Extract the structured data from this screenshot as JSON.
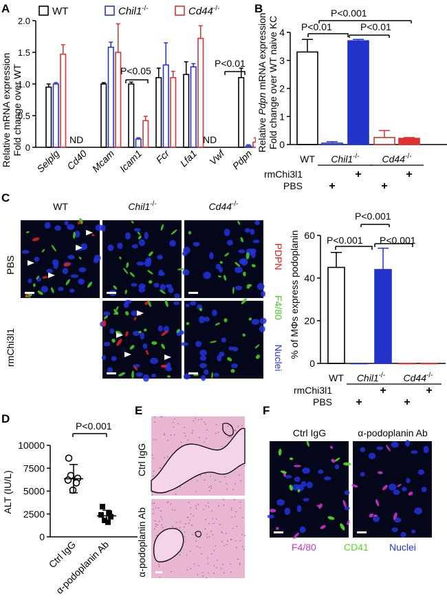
{
  "panels": {
    "A": "A",
    "B": "B",
    "C": "C",
    "D": "D",
    "E": "E",
    "F": "F"
  },
  "colors": {
    "wt": "#000000",
    "chil1": "#2233cc",
    "cd44": "#e03030",
    "pdpn": "#e02020",
    "f480_green": "#44cc22",
    "nuclei": "#2233dd",
    "f480_magenta": "#cc33cc",
    "cd41": "#55dd22"
  },
  "geno": {
    "wt": "WT",
    "chil1": "Chil1",
    "cd44": "Cd44",
    "sup": "-/-"
  },
  "chart_data": [
    {
      "panel": "A",
      "type": "bar",
      "ylabel_lines": [
        "Relative mRNA expression",
        "Fold change over WT"
      ],
      "ylim": [
        0,
        2
      ],
      "yticks": [
        "0",
        "0.5",
        "1.0",
        "1.5",
        "2.0"
      ],
      "categories": [
        "Selplg",
        "Cd40",
        "Mcam",
        "Icam1",
        "Fcr",
        "Lfa1",
        "Vwf",
        "Pdpn"
      ],
      "series": [
        {
          "name": "WT",
          "color": "#000000",
          "fill": "none",
          "values": [
            0.95,
            null,
            1.0,
            1.0,
            1.1,
            1.15,
            null,
            1.1
          ],
          "errors": [
            0.05,
            null,
            0.02,
            0.03,
            0.15,
            0.2,
            null,
            0.15
          ]
        },
        {
          "name": "Chil1-/-",
          "color": "#2233cc",
          "fill": "none",
          "values": [
            1.0,
            null,
            1.58,
            0.13,
            1.3,
            1.27,
            null,
            0.02
          ],
          "errors": [
            0.02,
            null,
            0.08,
            0.02,
            0.35,
            0.05,
            null,
            0.02
          ]
        },
        {
          "name": "Cd44-/-",
          "color": "#e03030",
          "fill": "none",
          "values": [
            1.47,
            null,
            1.5,
            0.42,
            1.1,
            1.72,
            null,
            0.08
          ],
          "errors": [
            0.15,
            null,
            0.45,
            0.07,
            0.1,
            0.2,
            null,
            0.07
          ]
        }
      ],
      "nd_labels": [
        "ND",
        "ND"
      ],
      "annotations": [
        "P<0.05",
        "P<0.01"
      ]
    },
    {
      "panel": "B",
      "type": "bar",
      "ylabel_lines": [
        "Relative Pdpn mRNA expression",
        "Fold change over WT naive KC"
      ],
      "ylim": [
        0,
        4
      ],
      "yticks": [
        "0",
        "1",
        "2",
        "3",
        "4"
      ],
      "categories": [
        "WT",
        "Chil1-/-",
        "Chil1-/-",
        "Cd44-/-",
        "Cd44-/-"
      ],
      "rmChi3l1": [
        "",
        "",
        "+",
        "",
        "+"
      ],
      "PBS": [
        "",
        "+",
        "",
        "+",
        ""
      ],
      "row_labels": [
        "rmChi3l1",
        "PBS"
      ],
      "values": [
        3.3,
        0.05,
        3.7,
        0.25,
        0.22
      ],
      "errors": [
        0.45,
        0.05,
        0.05,
        0.25,
        0.03
      ],
      "annotations": [
        "P<0.01",
        "P<0.001",
        "P<0.01"
      ]
    },
    {
      "panel": "C",
      "type": "bar",
      "ylabel": "% of MΦs express podoplanin",
      "ylim": [
        0,
        60
      ],
      "yticks": [
        "0",
        "20",
        "40",
        "60"
      ],
      "categories": [
        "WT",
        "Chil1-/-",
        "Chil1-/-",
        "Cd44-/-",
        "Cd44-/-"
      ],
      "rmChi3l1": [
        "",
        "",
        "+",
        "",
        "+"
      ],
      "PBS": [
        "",
        "+",
        "",
        "+",
        ""
      ],
      "row_labels": [
        "rmChi3l1",
        "PBS"
      ],
      "values": [
        45,
        0,
        44,
        0,
        0
      ],
      "errors": [
        7,
        0,
        10,
        0,
        0
      ],
      "annotations": [
        "P<0.001",
        "P<0.001",
        "P<0.001"
      ]
    },
    {
      "panel": "D",
      "type": "scatter",
      "ylabel": "ALT (IU/L)",
      "ylim": [
        0,
        10000
      ],
      "yticks": [
        "0",
        "2500",
        "5000",
        "7500",
        "10000"
      ],
      "categories": [
        "Ctrl IgG",
        "α-podoplanin Ab"
      ],
      "points": [
        [
          8600,
          6700,
          6400,
          6200,
          5900,
          5100
        ],
        [
          3300,
          2600,
          2400,
          2200,
          1800,
          1600
        ]
      ],
      "means": [
        6350,
        2300
      ],
      "sd": [
        1550,
        600
      ],
      "annotation": "P<0.001"
    }
  ],
  "micro_C": {
    "cols": [
      "WT",
      "Chil1",
      "Cd44"
    ],
    "rows": [
      "PBS",
      "rmChi3l1"
    ],
    "legend": [
      "PDPN",
      "F4/80",
      "Nuclei"
    ]
  },
  "micro_E": {
    "rows": [
      "Ctrl IgG",
      "α-podoplanin Ab"
    ]
  },
  "micro_F": {
    "cols": [
      "Ctrl IgG",
      "α-podoplanin Ab"
    ],
    "legend": [
      "F4/80",
      "CD41",
      "Nuclei"
    ]
  }
}
